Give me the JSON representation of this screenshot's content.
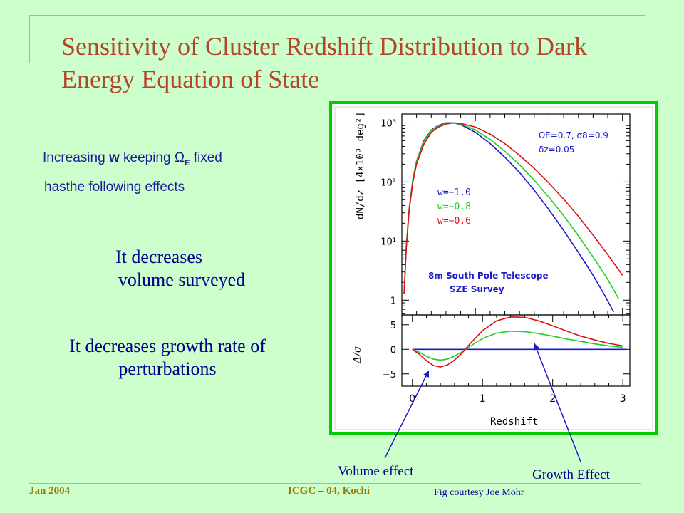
{
  "slide": {
    "title": "Sensitivity of Cluster Redshift Distribution to Dark Energy Equation of State",
    "intro": {
      "line1_prefix": "Increasing ",
      "line1_w": "w",
      "line1_keeping": " keeping ",
      "line1_omega": "Ω",
      "line1_sub": "E",
      "line1_suffix": " fixed",
      "line2": "hasthe following effects"
    },
    "statement1_line1": "It decreases",
    "statement1_line2": "volume surveyed",
    "statement2": "It decreases growth rate of perturbations",
    "annotation_volume": "Volume effect",
    "annotation_growth": "Growth Effect",
    "footer_date": "Jan 2004",
    "footer_conference": "ICGC – 04, Kochi",
    "footer_credit": "Fig courtesy Joe Mohr"
  },
  "figure": {
    "params_line1": "ΩE=0.7,  σ8=0.9",
    "params_line2": "δz=0.05",
    "survey_line1": "8m South Pole Telescope",
    "survey_line2": "SZE Survey",
    "colors": {
      "w_minus_1_0": "#1a1acc",
      "w_minus_0_8": "#22cc22",
      "w_minus_0_6": "#dd1111",
      "frame": "#00cc00",
      "label": "#1a1acc"
    }
  },
  "chart_data": [
    {
      "type": "line",
      "xlabel": "",
      "ylabel": "dN/dz [4x10³ deg²]",
      "xlim": [
        0,
        3.1
      ],
      "ylim_log10": [
        -0.25,
        3.15
      ],
      "yscale": "log",
      "ytick_labels": [
        "1",
        "10¹",
        "10²",
        "10³"
      ],
      "series": [
        {
          "name": "w=−1.0",
          "x": [
            0.03,
            0.06,
            0.1,
            0.15,
            0.2,
            0.3,
            0.4,
            0.5,
            0.6,
            0.7,
            0.8,
            1.0,
            1.2,
            1.4,
            1.6,
            1.8,
            2.0,
            2.2,
            2.4,
            2.6,
            2.75,
            2.88
          ],
          "y_log10": [
            0.1,
            0.9,
            1.55,
            2.05,
            2.35,
            2.7,
            2.88,
            2.96,
            3.0,
            3.0,
            2.97,
            2.84,
            2.65,
            2.42,
            2.16,
            1.86,
            1.53,
            1.18,
            0.81,
            0.42,
            0.1,
            -0.2
          ]
        },
        {
          "name": "w=−0.8",
          "x": [
            0.03,
            0.06,
            0.1,
            0.15,
            0.2,
            0.3,
            0.4,
            0.5,
            0.6,
            0.7,
            0.8,
            1.0,
            1.2,
            1.4,
            1.6,
            1.8,
            2.0,
            2.2,
            2.4,
            2.6,
            2.8,
            2.95
          ],
          "y_log10": [
            0.1,
            0.9,
            1.55,
            2.04,
            2.34,
            2.68,
            2.87,
            2.95,
            2.99,
            3.0,
            2.98,
            2.88,
            2.72,
            2.52,
            2.29,
            2.03,
            1.74,
            1.43,
            1.09,
            0.73,
            0.35,
            0.02
          ]
        },
        {
          "name": "w=−0.6",
          "x": [
            0.03,
            0.06,
            0.1,
            0.15,
            0.2,
            0.3,
            0.4,
            0.5,
            0.6,
            0.7,
            0.8,
            1.0,
            1.2,
            1.4,
            1.6,
            1.8,
            2.0,
            2.2,
            2.4,
            2.6,
            2.8,
            3.0
          ],
          "y_log10": [
            0.1,
            0.88,
            1.52,
            2.0,
            2.3,
            2.64,
            2.84,
            2.93,
            2.98,
            3.0,
            2.99,
            2.93,
            2.81,
            2.65,
            2.45,
            2.23,
            1.98,
            1.71,
            1.42,
            1.1,
            0.77,
            0.42
          ]
        }
      ]
    },
    {
      "type": "line",
      "xlabel": "Redshift",
      "ylabel": "Δ/σ",
      "xlim": [
        -0.15,
        3.1
      ],
      "ylim": [
        -7.5,
        7
      ],
      "x_ticks": [
        0,
        1,
        2,
        3
      ],
      "y_ticks": [
        5,
        0,
        -5
      ],
      "y_tick_labels": [
        "5",
        "0",
        "−5"
      ],
      "series": [
        {
          "name": "w=−1.0",
          "x": [
            0,
            3.05
          ],
          "y": [
            0,
            0
          ]
        },
        {
          "name": "w=−0.8",
          "x": [
            0,
            0.1,
            0.2,
            0.3,
            0.4,
            0.5,
            0.6,
            0.7,
            0.8,
            1.0,
            1.2,
            1.4,
            1.6,
            1.8,
            2.0,
            2.2,
            2.4,
            2.6,
            2.8,
            3.0
          ],
          "y": [
            0,
            -0.6,
            -1.4,
            -2.0,
            -2.2,
            -2.0,
            -1.4,
            -0.6,
            0.4,
            2.2,
            3.3,
            3.7,
            3.6,
            3.2,
            2.7,
            2.1,
            1.6,
            1.1,
            0.7,
            0.4
          ]
        },
        {
          "name": "w=−0.6",
          "x": [
            0,
            0.1,
            0.2,
            0.3,
            0.4,
            0.5,
            0.6,
            0.7,
            0.8,
            1.0,
            1.2,
            1.4,
            1.6,
            1.8,
            2.0,
            2.2,
            2.4,
            2.6,
            2.8,
            3.0
          ],
          "y": [
            0,
            -1.0,
            -2.3,
            -3.3,
            -3.6,
            -3.2,
            -2.2,
            -0.9,
            0.8,
            3.8,
            5.8,
            6.6,
            6.5,
            5.8,
            4.8,
            3.7,
            2.7,
            1.9,
            1.2,
            0.7
          ]
        }
      ]
    }
  ]
}
